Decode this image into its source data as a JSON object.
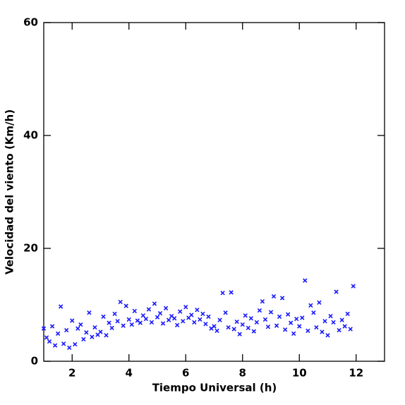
{
  "chart_data": {
    "type": "scatter",
    "xlabel": "Tiempo Universal (h)",
    "ylabel": "Velocidad del viento (Km/h)",
    "xlim": [
      1,
      13
    ],
    "ylim": [
      0,
      60
    ],
    "xticks": [
      2,
      4,
      6,
      8,
      10,
      12
    ],
    "yticks": [
      0,
      20,
      40,
      60
    ],
    "color": "#1a1aff",
    "x": [
      1.0,
      1.1,
      1.2,
      1.3,
      1.4,
      1.5,
      1.6,
      1.7,
      1.8,
      1.9,
      2.0,
      2.1,
      2.2,
      2.3,
      2.4,
      2.5,
      2.6,
      2.7,
      2.8,
      2.9,
      3.0,
      3.1,
      3.2,
      3.3,
      3.4,
      3.5,
      3.6,
      3.7,
      3.8,
      3.9,
      4.0,
      4.1,
      4.2,
      4.3,
      4.4,
      4.5,
      4.6,
      4.7,
      4.8,
      4.9,
      5.0,
      5.1,
      5.2,
      5.3,
      5.4,
      5.5,
      5.6,
      5.7,
      5.8,
      5.9,
      6.0,
      6.1,
      6.2,
      6.3,
      6.4,
      6.5,
      6.6,
      6.7,
      6.8,
      6.9,
      7.0,
      7.1,
      7.2,
      7.3,
      7.4,
      7.5,
      7.6,
      7.7,
      7.8,
      7.9,
      8.0,
      8.1,
      8.2,
      8.3,
      8.4,
      8.5,
      8.6,
      8.7,
      8.8,
      8.9,
      9.0,
      9.1,
      9.2,
      9.3,
      9.4,
      9.5,
      9.6,
      9.7,
      9.8,
      9.9,
      10.0,
      10.1,
      10.2,
      10.3,
      10.4,
      10.5,
      10.6,
      10.7,
      10.8,
      10.9,
      11.0,
      11.1,
      11.2,
      11.3,
      11.4,
      11.5,
      11.6,
      11.7,
      11.8,
      11.9
    ],
    "values": [
      5.8,
      4.2,
      3.5,
      6.2,
      2.8,
      4.9,
      9.7,
      3.1,
      5.5,
      2.4,
      7.2,
      3.0,
      5.8,
      6.5,
      3.9,
      5.1,
      8.6,
      4.3,
      6.0,
      4.7,
      5.2,
      7.9,
      4.6,
      6.8,
      5.9,
      8.4,
      7.1,
      10.5,
      6.3,
      9.8,
      7.4,
      6.5,
      8.9,
      7.2,
      6.8,
      8.1,
      7.5,
      9.2,
      6.9,
      10.2,
      7.8,
      8.5,
      6.7,
      9.4,
      7.3,
      8.0,
      7.6,
      6.4,
      8.8,
      7.1,
      9.6,
      7.7,
      8.2,
      6.9,
      9.1,
      7.4,
      8.4,
      6.6,
      7.9,
      5.8,
      6.2,
      5.4,
      7.3,
      12.1,
      8.6,
      6.0,
      12.2,
      5.7,
      7.0,
      4.8,
      6.5,
      8.1,
      5.9,
      7.6,
      5.3,
      6.9,
      9.0,
      10.6,
      7.4,
      6.1,
      8.7,
      11.5,
      6.3,
      7.9,
      11.2,
      5.6,
      8.3,
      6.8,
      4.9,
      7.5,
      6.2,
      7.7,
      14.3,
      5.4,
      9.9,
      8.6,
      6.0,
      10.4,
      5.2,
      7.1,
      4.6,
      8.0,
      6.9,
      12.3,
      5.5,
      7.3,
      6.2,
      8.4,
      5.7,
      13.3
    ]
  }
}
